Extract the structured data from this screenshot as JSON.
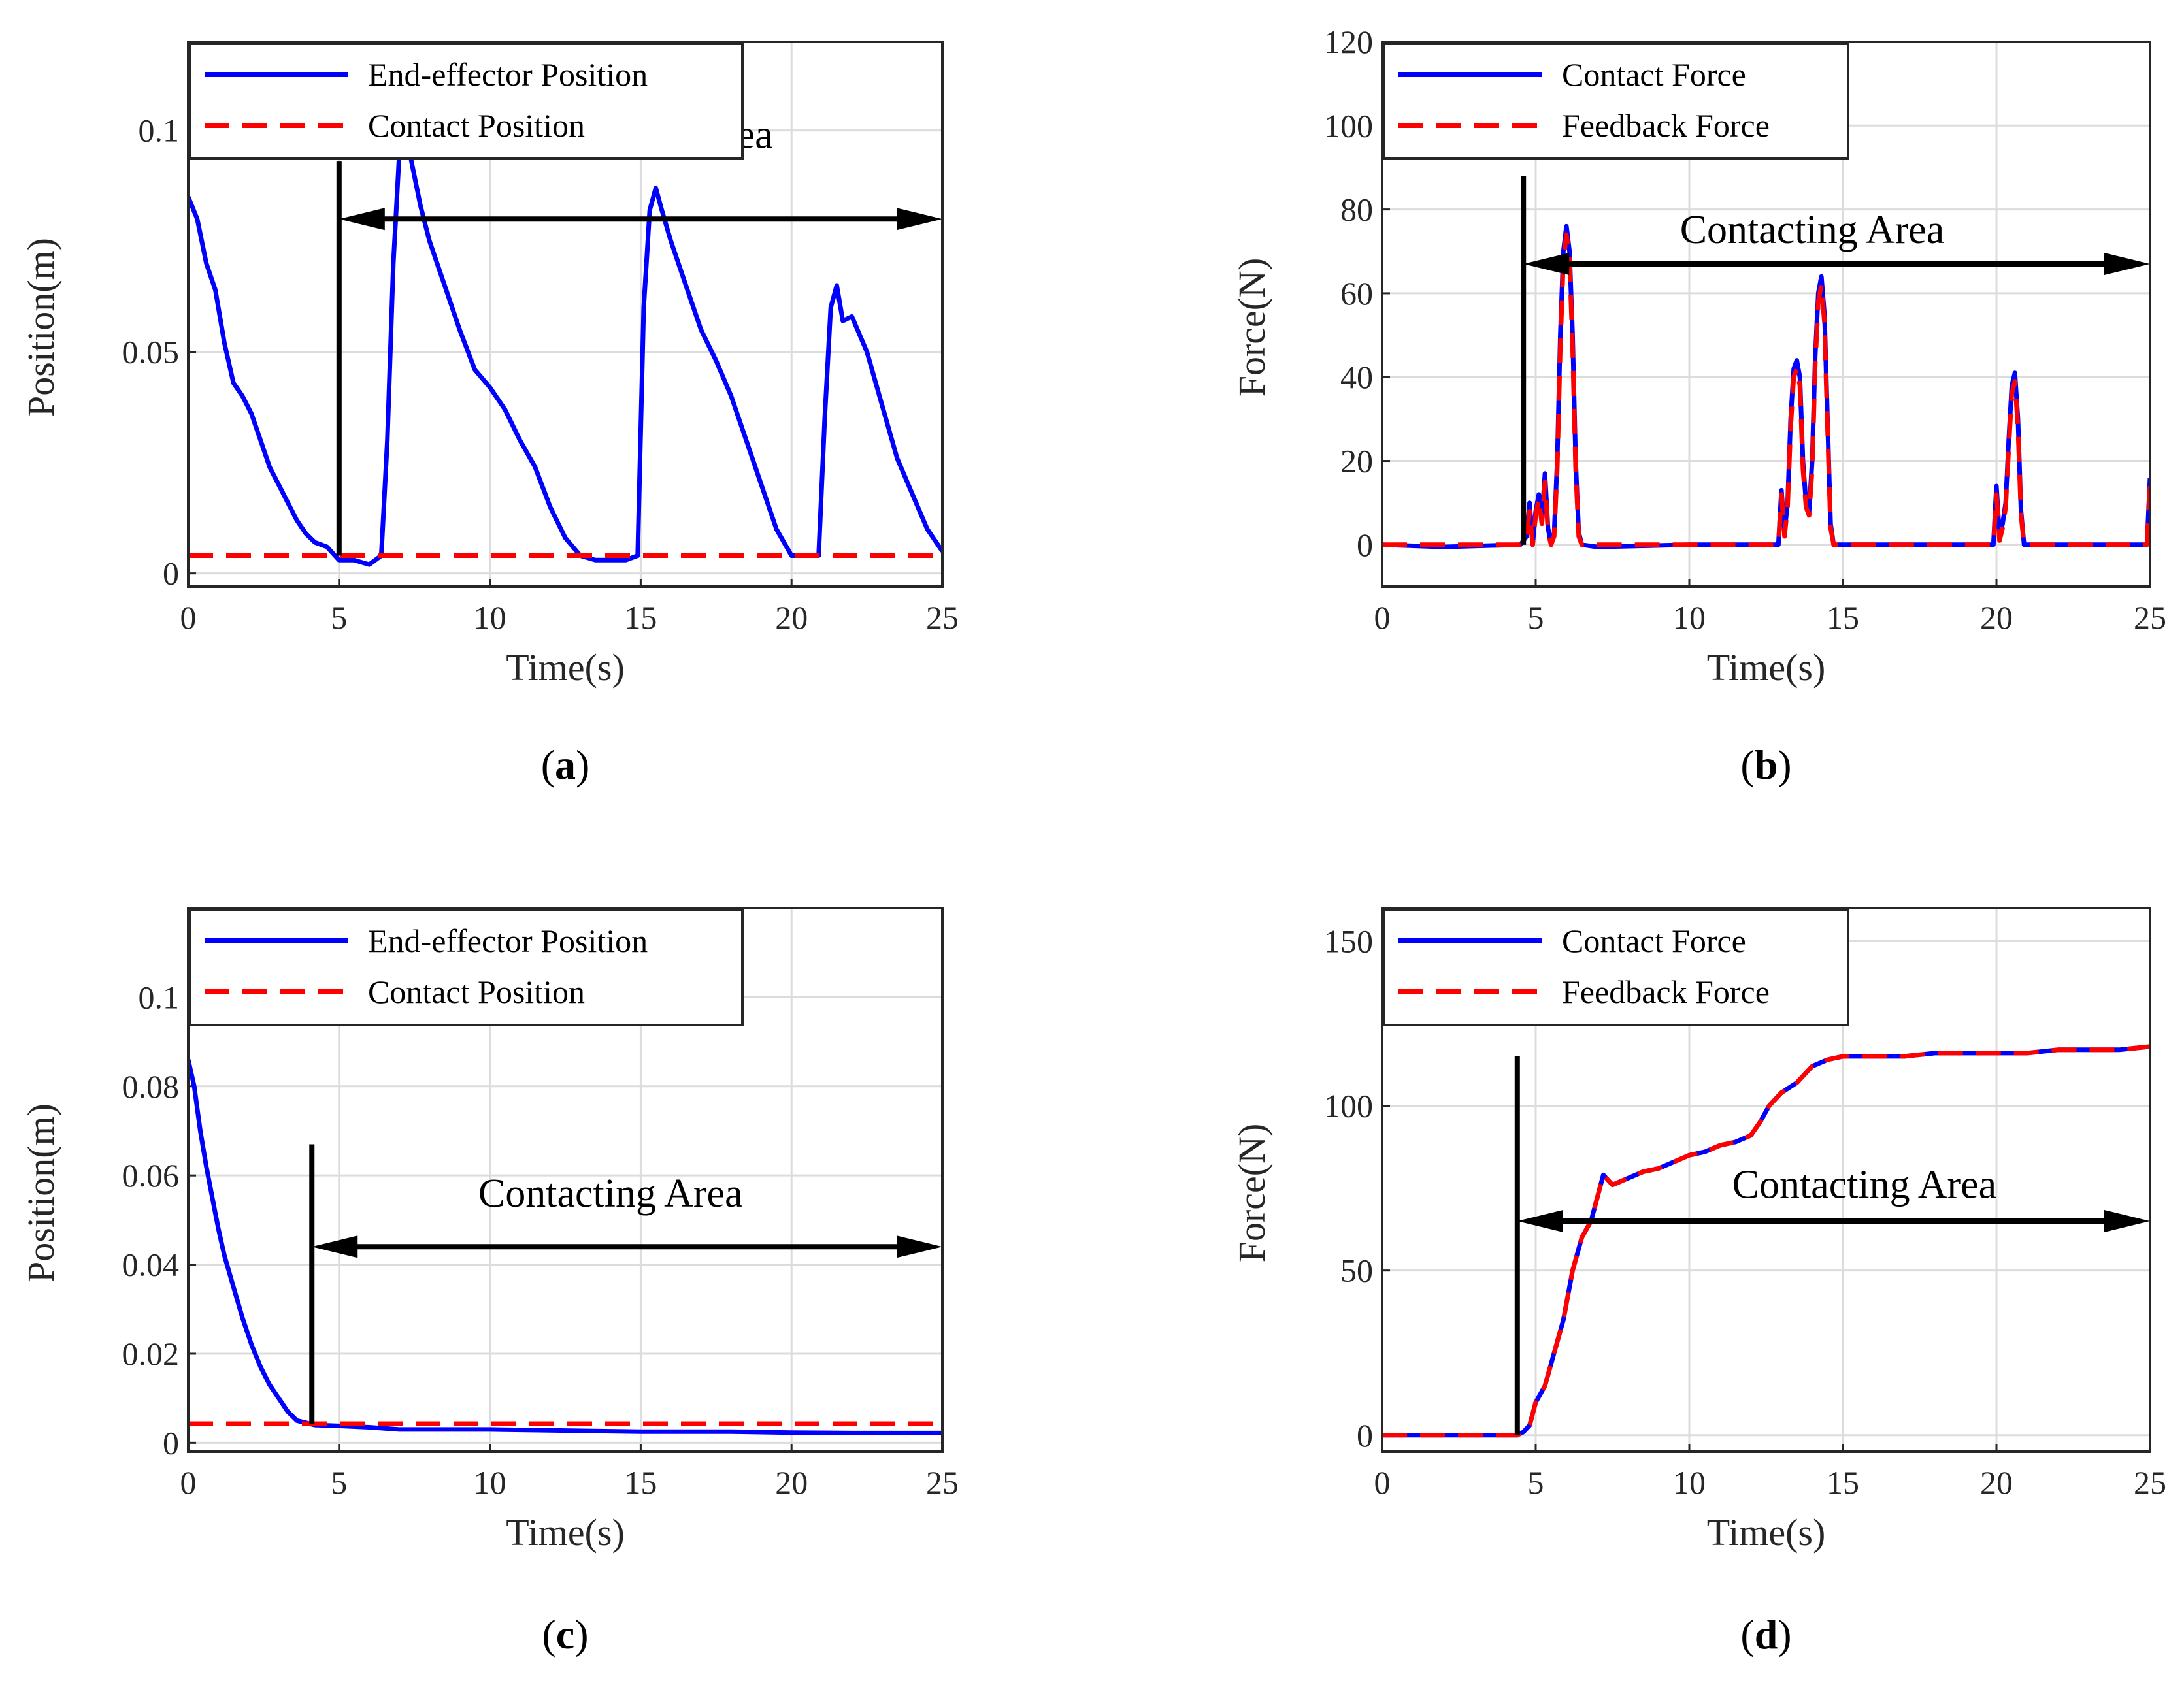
{
  "figure": {
    "colors": {
      "blue": "#0000ff",
      "red": "#ff0000",
      "black": "#000000",
      "grid": "#dcdcdc"
    }
  },
  "chart_data": [
    {
      "id": "a",
      "panel_label": "a",
      "type": "line",
      "xlabel": "Time(s)",
      "ylabel": "Position(m)",
      "xlim": [
        0,
        25
      ],
      "ylim": [
        -0.003,
        0.12
      ],
      "xticks": [
        "0",
        "5",
        "10",
        "15",
        "20",
        "25"
      ],
      "xtick_values": [
        0,
        5,
        10,
        15,
        20,
        25
      ],
      "yticks": [
        "0",
        "0.05",
        "0.1"
      ],
      "ytick_values": [
        0,
        0.05,
        0.1
      ],
      "grid": true,
      "legend_position": "top-left",
      "annotation": {
        "text": "Contacting Area",
        "x": 15,
        "y": 0.096,
        "arrow_x": [
          5,
          25
        ],
        "arrow_y": 0.08,
        "vline_x": 5,
        "vline_top": 0.093
      },
      "series": [
        {
          "name": "End-effector Position",
          "color": "#0000ff",
          "style": "solid",
          "x": [
            0,
            0.3,
            0.6,
            0.9,
            1.2,
            1.5,
            1.8,
            2.1,
            2.4,
            2.7,
            3.0,
            3.3,
            3.6,
            3.9,
            4.2,
            4.6,
            5.0,
            5.5,
            6.0,
            6.4,
            6.6,
            6.8,
            7.0,
            7.2,
            7.4,
            7.7,
            8.0,
            8.5,
            9.0,
            9.5,
            10.0,
            10.5,
            11.0,
            11.5,
            12.0,
            12.5,
            13.0,
            13.5,
            14.0,
            14.5,
            14.9,
            15.1,
            15.3,
            15.5,
            15.7,
            16.0,
            16.5,
            17.0,
            17.5,
            18.0,
            18.5,
            19.0,
            19.5,
            20.0,
            20.5,
            20.9,
            21.1,
            21.3,
            21.5,
            21.7,
            22.0,
            22.5,
            23.0,
            23.5,
            24.0,
            24.5,
            25.0
          ],
          "y": [
            0.085,
            0.08,
            0.07,
            0.064,
            0.052,
            0.043,
            0.04,
            0.036,
            0.03,
            0.024,
            0.02,
            0.016,
            0.012,
            0.009,
            0.007,
            0.006,
            0.003,
            0.003,
            0.002,
            0.004,
            0.03,
            0.07,
            0.095,
            0.102,
            0.093,
            0.083,
            0.075,
            0.065,
            0.055,
            0.046,
            0.042,
            0.037,
            0.03,
            0.024,
            0.015,
            0.008,
            0.004,
            0.003,
            0.003,
            0.003,
            0.004,
            0.06,
            0.082,
            0.087,
            0.082,
            0.075,
            0.065,
            0.055,
            0.048,
            0.04,
            0.03,
            0.02,
            0.01,
            0.004,
            0.004,
            0.004,
            0.035,
            0.06,
            0.065,
            0.057,
            0.058,
            0.05,
            0.038,
            0.026,
            0.018,
            0.01,
            0.005
          ]
        },
        {
          "name": "Contact Position",
          "color": "#ff0000",
          "style": "dashed",
          "x": [
            0,
            25
          ],
          "y": [
            0.004,
            0.004
          ]
        }
      ]
    },
    {
      "id": "b",
      "panel_label": "b",
      "type": "line",
      "xlabel": "Time(s)",
      "ylabel": "Force(N)",
      "xlim": [
        0,
        25
      ],
      "ylim": [
        -10,
        120
      ],
      "xticks": [
        "0",
        "5",
        "10",
        "15",
        "20",
        "25"
      ],
      "xtick_values": [
        0,
        5,
        10,
        15,
        20,
        25
      ],
      "yticks": [
        "0",
        "20",
        "40",
        "60",
        "80",
        "100",
        "120"
      ],
      "ytick_values": [
        0,
        20,
        40,
        60,
        80,
        100,
        120
      ],
      "grid": true,
      "legend_position": "top-left",
      "annotation": {
        "text": "Contacting Area",
        "x": 14,
        "y": 72,
        "arrow_x": [
          4.6,
          25
        ],
        "arrow_y": 67,
        "vline_x": 4.6,
        "vline_top": 88
      },
      "series": [
        {
          "name": "Contact Force",
          "color": "#0000ff",
          "style": "solid",
          "x": [
            0,
            2,
            4.5,
            4.7,
            4.8,
            4.9,
            5.0,
            5.1,
            5.2,
            5.3,
            5.4,
            5.5,
            5.6,
            5.7,
            5.8,
            5.9,
            6.0,
            6.1,
            6.2,
            6.3,
            6.4,
            6.5,
            7,
            10,
            12.9,
            13.0,
            13.1,
            13.2,
            13.3,
            13.4,
            13.5,
            13.6,
            13.7,
            13.8,
            13.9,
            14.0,
            14.1,
            14.2,
            14.3,
            14.4,
            14.5,
            14.6,
            14.7,
            15,
            18,
            19.9,
            20.0,
            20.1,
            20.2,
            20.3,
            20.4,
            20.5,
            20.6,
            20.7,
            20.8,
            20.9,
            21.0,
            24.9,
            25.0
          ],
          "y": [
            0,
            -0.5,
            0,
            2,
            10,
            0,
            8,
            12,
            6,
            17,
            4,
            0,
            3,
            20,
            50,
            70,
            76,
            70,
            50,
            20,
            3,
            0,
            -0.5,
            0,
            0,
            13,
            3,
            10,
            30,
            42,
            44,
            40,
            20,
            10,
            8,
            20,
            45,
            60,
            64,
            55,
            30,
            5,
            0,
            0,
            0,
            0,
            14,
            2,
            5,
            10,
            25,
            38,
            41,
            30,
            8,
            0,
            0,
            0,
            16
          ]
        },
        {
          "name": "Feedback Force",
          "color": "#ff0000",
          "style": "dashed",
          "x": [
            0,
            2,
            4.5,
            4.7,
            4.8,
            4.9,
            5.0,
            5.1,
            5.2,
            5.3,
            5.4,
            5.5,
            5.6,
            5.7,
            5.8,
            5.9,
            6.0,
            6.1,
            6.2,
            6.3,
            6.4,
            6.5,
            7,
            10,
            12.9,
            13.0,
            13.1,
            13.2,
            13.3,
            13.4,
            13.5,
            13.6,
            13.7,
            13.8,
            13.9,
            14.0,
            14.1,
            14.2,
            14.3,
            14.4,
            14.5,
            14.6,
            14.7,
            15,
            18,
            19.9,
            20.0,
            20.1,
            20.2,
            20.3,
            20.4,
            20.5,
            20.6,
            20.7,
            20.8,
            20.9,
            21.0,
            24.9,
            25.0
          ],
          "y": [
            0,
            0,
            0,
            1,
            8,
            0,
            7,
            11,
            5,
            15,
            3,
            0,
            2,
            18,
            47,
            68,
            74,
            68,
            47,
            18,
            2,
            0,
            0,
            0,
            0,
            12,
            2,
            9,
            28,
            40,
            42,
            38,
            18,
            9,
            7,
            18,
            43,
            58,
            62,
            53,
            28,
            4,
            0,
            0,
            0,
            0,
            12,
            1,
            4,
            9,
            23,
            36,
            39,
            28,
            7,
            0,
            0,
            0,
            14
          ]
        }
      ]
    },
    {
      "id": "c",
      "panel_label": "c",
      "type": "line",
      "xlabel": "Time(s)",
      "ylabel": "Position(m)",
      "xlim": [
        0,
        25
      ],
      "ylim": [
        -0.002,
        0.12
      ],
      "xticks": [
        "0",
        "5",
        "10",
        "15",
        "20",
        "25"
      ],
      "xtick_values": [
        0,
        5,
        10,
        15,
        20,
        25
      ],
      "yticks": [
        "0",
        "0.02",
        "0.04",
        "0.06",
        "0.08",
        "0.1"
      ],
      "ytick_values": [
        0,
        0.02,
        0.04,
        0.06,
        0.08,
        0.1
      ],
      "grid": true,
      "legend_position": "top-left",
      "annotation": {
        "text": "Contacting Area",
        "x": 14,
        "y": 0.053,
        "arrow_x": [
          4.1,
          25
        ],
        "arrow_y": 0.044,
        "vline_x": 4.1,
        "vline_top": 0.067
      },
      "series": [
        {
          "name": "End-effector Position",
          "color": "#0000ff",
          "style": "solid",
          "x": [
            0,
            0.2,
            0.4,
            0.6,
            0.8,
            1.0,
            1.2,
            1.5,
            1.8,
            2.1,
            2.4,
            2.7,
            3.0,
            3.3,
            3.6,
            3.9,
            4.2,
            5,
            6,
            7,
            8,
            10,
            12,
            15,
            18,
            20,
            22,
            25
          ],
          "y": [
            0.086,
            0.08,
            0.07,
            0.062,
            0.055,
            0.048,
            0.042,
            0.035,
            0.028,
            0.022,
            0.017,
            0.013,
            0.01,
            0.007,
            0.005,
            0.0045,
            0.004,
            0.0038,
            0.0035,
            0.003,
            0.003,
            0.003,
            0.0028,
            0.0025,
            0.0025,
            0.0023,
            0.0022,
            0.0022
          ]
        },
        {
          "name": "Contact Position",
          "color": "#ff0000",
          "style": "dashed",
          "x": [
            0,
            25
          ],
          "y": [
            0.0043,
            0.0043
          ]
        }
      ]
    },
    {
      "id": "d",
      "panel_label": "d",
      "type": "line",
      "xlabel": "Time(s)",
      "ylabel": "Force(N)",
      "xlim": [
        0,
        25
      ],
      "ylim": [
        -5,
        160
      ],
      "xticks": [
        "0",
        "5",
        "10",
        "15",
        "20",
        "25"
      ],
      "xtick_values": [
        0,
        5,
        10,
        15,
        20,
        25
      ],
      "yticks": [
        "0",
        "50",
        "100",
        "150"
      ],
      "ytick_values": [
        0,
        50,
        100,
        150
      ],
      "grid": true,
      "legend_position": "top-left",
      "annotation": {
        "text": "Contacting Area",
        "x": 15.7,
        "y": 72,
        "arrow_x": [
          4.4,
          25
        ],
        "arrow_y": 65,
        "vline_x": 4.4,
        "vline_top": 115
      },
      "series": [
        {
          "name": "Contact Force",
          "color": "#0000ff",
          "style": "solid",
          "x": [
            0,
            2,
            4.4,
            4.6,
            4.8,
            5.0,
            5.3,
            5.6,
            5.9,
            6.2,
            6.5,
            6.8,
            7.0,
            7.2,
            7.5,
            8,
            8.5,
            9,
            9.5,
            10,
            10.5,
            11,
            11.5,
            12,
            12.3,
            12.6,
            13,
            13.5,
            14,
            14.5,
            15,
            16,
            17,
            18,
            19,
            20,
            21,
            22,
            23,
            24,
            25
          ],
          "y": [
            0,
            0,
            0,
            1,
            3,
            10,
            15,
            25,
            35,
            50,
            60,
            65,
            72,
            79,
            76,
            78,
            80,
            81,
            83,
            85,
            86,
            88,
            89,
            91,
            95,
            100,
            104,
            107,
            112,
            114,
            115,
            115,
            115,
            116,
            116,
            116,
            116,
            117,
            117,
            117,
            118
          ]
        },
        {
          "name": "Feedback Force",
          "color": "#ff0000",
          "style": "dashed",
          "x": [
            0,
            2,
            4.4,
            4.6,
            4.8,
            5.0,
            5.3,
            5.6,
            5.9,
            6.2,
            6.5,
            6.8,
            7.0,
            7.2,
            7.5,
            8,
            8.5,
            9,
            9.5,
            10,
            10.5,
            11,
            11.5,
            12,
            12.3,
            12.6,
            13,
            13.5,
            14,
            14.5,
            15,
            16,
            17,
            18,
            19,
            20,
            21,
            22,
            23,
            24,
            25
          ],
          "y": [
            0,
            0,
            0,
            1,
            3,
            10,
            15,
            25,
            35,
            50,
            60,
            65,
            72,
            79,
            76,
            78,
            80,
            81,
            83,
            85,
            86,
            88,
            89,
            91,
            95,
            100,
            104,
            107,
            112,
            114,
            115,
            115,
            115,
            116,
            116,
            116,
            116,
            117,
            117,
            117,
            118
          ]
        }
      ]
    }
  ]
}
